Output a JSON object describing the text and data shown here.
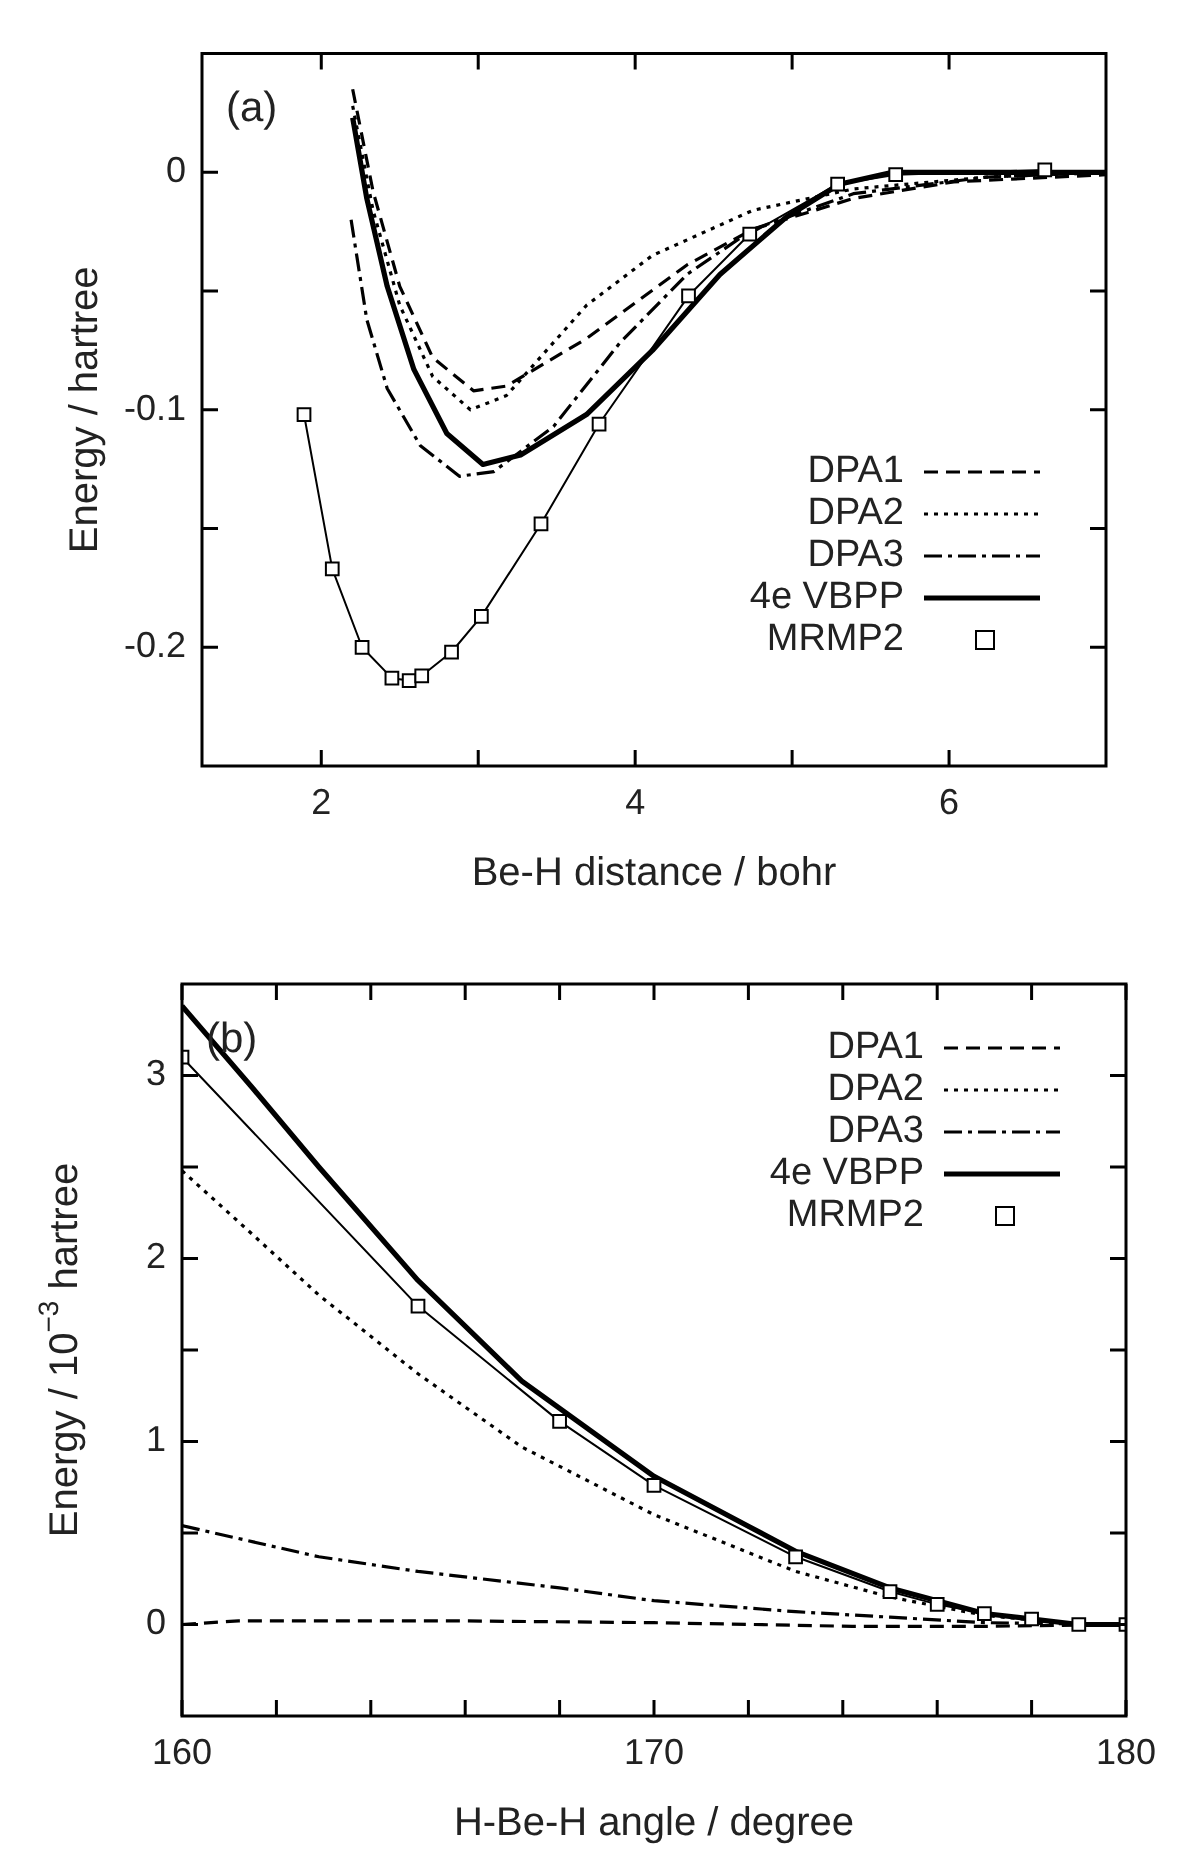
{
  "chart_data": [
    {
      "type": "line",
      "xlabel": "Be-H distance / bohr",
      "ylabel": "Energy / hartree",
      "annotations": [
        "(a)"
      ],
      "xlim": [
        1.24,
        7
      ],
      "ylim": [
        -0.25,
        0.05
      ],
      "xticks": [
        2,
        {
          "value": 3,
          "label": null
        },
        4,
        {
          "value": 5,
          "label": null
        },
        6
      ],
      "yticks": [
        {
          "value": -0.15,
          "label": null
        },
        -0.2,
        -0.1,
        {
          "value": -0.05,
          "label": null
        },
        0
      ],
      "grid": false,
      "legend": "bottom right",
      "series": [
        {
          "name": "DPA1",
          "color": "#000000",
          "line_style": "dashed",
          "marker": "none",
          "x": [
            2.2,
            2.33,
            2.5,
            2.71,
            2.97,
            3.18,
            3.69,
            4.33,
            4.75,
            5.39,
            6.03,
            7
          ],
          "values": [
            0.035,
            -0.008,
            -0.048,
            -0.078,
            -0.092,
            -0.09,
            -0.07,
            -0.039,
            -0.024,
            -0.011,
            -0.004,
            -0.001
          ]
        },
        {
          "name": "DPA2",
          "color": "#000000",
          "line_style": "dotted",
          "marker": "none",
          "x": [
            2.2,
            2.33,
            2.5,
            2.71,
            2.95,
            3.18,
            3.69,
            4.11,
            4.75,
            5.39,
            6.24,
            7
          ],
          "values": [
            0.028,
            -0.016,
            -0.056,
            -0.086,
            -0.1,
            -0.094,
            -0.056,
            -0.035,
            -0.016,
            -0.007,
            -0.002,
            0
          ]
        },
        {
          "name": "DPA3",
          "color": "#000000",
          "line_style": "dashdot",
          "marker": "none",
          "x": [
            2.19,
            2.29,
            2.42,
            2.63,
            2.88,
            3.1,
            3.48,
            3.9,
            4.33,
            4.75,
            5.39,
            6.24,
            7
          ],
          "values": [
            -0.02,
            -0.062,
            -0.091,
            -0.115,
            -0.128,
            -0.126,
            -0.107,
            -0.072,
            -0.043,
            -0.024,
            -0.009,
            -0.002,
            0
          ]
        },
        {
          "name": "4e VBPP",
          "color": "#000000",
          "line_style": "solid",
          "marker": "none",
          "x": [
            2.2,
            2.29,
            2.42,
            2.59,
            2.8,
            3.03,
            3.27,
            3.69,
            4.11,
            4.54,
            4.96,
            5.3,
            5.64,
            6.24,
            7
          ],
          "values": [
            0.023,
            -0.011,
            -0.048,
            -0.083,
            -0.11,
            -0.123,
            -0.119,
            -0.102,
            -0.075,
            -0.043,
            -0.019,
            -0.005,
            0,
            0,
            0
          ]
        },
        {
          "name": "MRMP2",
          "color": "#000000",
          "line_style": "solid",
          "marker": "square",
          "x": [
            1.89,
            2.07,
            2.26,
            2.45,
            2.56,
            2.64,
            2.83,
            3.02,
            3.4,
            3.77,
            4.34,
            4.73,
            5.29,
            5.66,
            6.61
          ],
          "values": [
            -0.102,
            -0.167,
            -0.2,
            -0.213,
            -0.214,
            -0.212,
            -0.202,
            -0.187,
            -0.148,
            -0.106,
            -0.052,
            -0.026,
            -0.005,
            -0.001,
            0.001
          ]
        }
      ]
    },
    {
      "type": "line",
      "xlabel": "H-Be-H angle / degree",
      "ylabel": "Energy / 10$^{−3}$ hartree",
      "annotations": [
        "(b)"
      ],
      "xlim": [
        160,
        180
      ],
      "ylim": [
        -0.5,
        3.5
      ],
      "xticks": [
        160,
        {
          "value": 162,
          "label": null
        },
        {
          "value": 164,
          "label": null
        },
        {
          "value": 166,
          "label": null
        },
        {
          "value": 168,
          "label": null
        },
        170,
        {
          "value": 172,
          "label": null
        },
        {
          "value": 174,
          "label": null
        },
        {
          "value": 176,
          "label": null
        },
        {
          "value": 178,
          "label": null
        },
        180
      ],
      "yticks": [
        0,
        {
          "value": 0.5,
          "label": null
        },
        1,
        {
          "value": 1.5,
          "label": null
        },
        2,
        {
          "value": 2.5,
          "label": null
        },
        3
      ],
      "grid": false,
      "legend": "top right",
      "series": [
        {
          "name": "DPA1",
          "color": "#000000",
          "line_style": "dashed",
          "marker": "none",
          "x": [
            160,
            161.2,
            165.8,
            170,
            174.2,
            177,
            180
          ],
          "values": [
            0,
            0.02,
            0.02,
            0.01,
            -0.01,
            -0.01,
            0
          ]
        },
        {
          "name": "DPA2",
          "color": "#000000",
          "line_style": "dotted",
          "marker": "none",
          "x": [
            160,
            161.5,
            162.9,
            165,
            167.2,
            170,
            173,
            175,
            177,
            179,
            180
          ],
          "values": [
            2.48,
            2.13,
            1.8,
            1.37,
            0.97,
            0.6,
            0.29,
            0.15,
            0.05,
            0,
            0
          ]
        },
        {
          "name": "DPA3",
          "color": "#000000",
          "line_style": "dashdot",
          "marker": "none",
          "x": [
            160,
            162.9,
            165,
            168,
            170,
            173,
            175,
            177,
            180
          ],
          "values": [
            0.54,
            0.37,
            0.29,
            0.2,
            0.13,
            0.07,
            0.04,
            0.01,
            0
          ]
        },
        {
          "name": "4e VBPP",
          "color": "#000000",
          "line_style": "solid",
          "marker": "none",
          "x": [
            160,
            161.5,
            162.9,
            165,
            167.2,
            170,
            173,
            175,
            177,
            179,
            180
          ],
          "values": [
            3.38,
            2.93,
            2.5,
            1.88,
            1.33,
            0.81,
            0.4,
            0.2,
            0.06,
            0,
            0
          ]
        },
        {
          "name": "MRMP2",
          "color": "#000000",
          "line_style": "solid",
          "marker": "square",
          "x": [
            160,
            165,
            168,
            170,
            173,
            175,
            176,
            177,
            178,
            179,
            180
          ],
          "values": [
            3.1,
            1.74,
            1.11,
            0.76,
            0.37,
            0.18,
            0.11,
            0.06,
            0.03,
            0,
            0
          ]
        }
      ]
    }
  ]
}
